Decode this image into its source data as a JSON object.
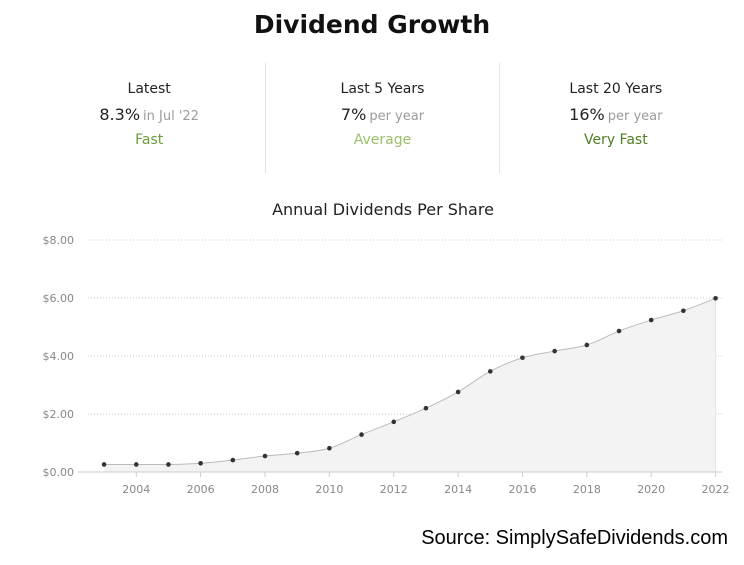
{
  "header": {
    "title": "Dividend Growth"
  },
  "stats": [
    {
      "label": "Latest",
      "value": "8.3%",
      "suffix": "in Jul '22",
      "rating": "Fast",
      "rating_color": "#6b9b3a"
    },
    {
      "label": "Last 5 Years",
      "value": "7%",
      "suffix": "per year",
      "rating": "Average",
      "rating_color": "#9bbf6a"
    },
    {
      "label": "Last 20 Years",
      "value": "16%",
      "suffix": "per year",
      "rating": "Very Fast",
      "rating_color": "#4f7f22"
    }
  ],
  "chart_data": {
    "type": "area",
    "title": "Annual Dividends Per Share",
    "xlabel": "",
    "ylabel": "",
    "x": [
      2003,
      2004,
      2005,
      2006,
      2007,
      2008,
      2009,
      2010,
      2011,
      2012,
      2013,
      2014,
      2015,
      2016,
      2017,
      2018,
      2019,
      2020,
      2021,
      2022
    ],
    "series": [
      {
        "values": [
          0.26,
          0.26,
          0.26,
          0.3,
          0.41,
          0.55,
          0.65,
          0.82,
          1.29,
          1.73,
          2.2,
          2.76,
          3.47,
          3.94,
          4.17,
          4.38,
          4.86,
          5.24,
          5.56,
          5.99
        ]
      }
    ],
    "xlim": [
      2002.5,
      2022.2
    ],
    "ylim": [
      0,
      8
    ],
    "x_ticks": [
      "2004",
      "2006",
      "2008",
      "2010",
      "2012",
      "2014",
      "2016",
      "2018",
      "2020",
      "2022"
    ],
    "y_ticks": [
      "$0.00",
      "$2.00",
      "$4.00",
      "$6.00",
      "$8.00"
    ],
    "grid": true,
    "line_color": "#bbbbbb",
    "fill_color": "#f3f3f3",
    "point_color": "#333333"
  },
  "footer": {
    "source": "Source: SimplySafeDividends.com"
  }
}
